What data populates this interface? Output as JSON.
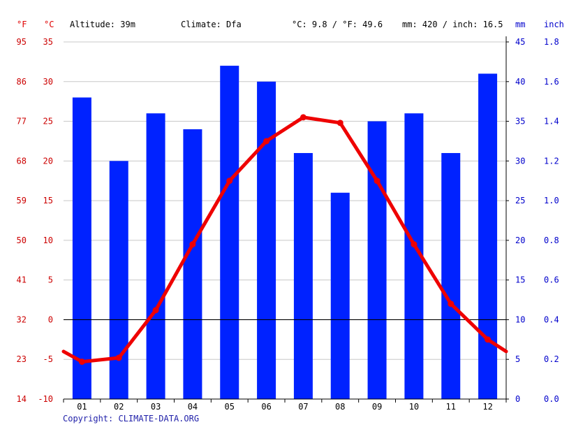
{
  "header": {
    "unit_f": "°F",
    "unit_c": "°C",
    "altitude": "Altitude: 39m",
    "climate": "Climate: Dfa",
    "temp_avg": "°C: 9.8 / °F: 49.6",
    "precip_total": "mm: 420 / inch: 16.5",
    "unit_mm": "mm",
    "unit_inch": "inch"
  },
  "footer": {
    "copyright": "Copyright: CLIMATE-DATA.ORG"
  },
  "colors": {
    "temperature": "#ee0000",
    "precipitation": "#0022ff",
    "left_axis": "#cc0000",
    "right_axis": "#0000cc"
  },
  "chart_data": {
    "type": "bar",
    "categories": [
      "01",
      "02",
      "03",
      "04",
      "05",
      "06",
      "07",
      "08",
      "09",
      "10",
      "11",
      "12"
    ],
    "series": [
      {
        "values": [
          38,
          30,
          36,
          34,
          42,
          40,
          31,
          26,
          35,
          36,
          31,
          41
        ]
      },
      {
        "type": "line",
        "values": [
          -5.3,
          -4.8,
          1.2,
          9.5,
          17.5,
          22.5,
          25.5,
          24.8,
          17.5,
          9.5,
          2.0,
          -2.5
        ]
      }
    ],
    "x_endpoints_temp": {
      "before": -4.0,
      "after": -4.0
    },
    "y_left_c": {
      "ticks": [
        35,
        30,
        25,
        20,
        15,
        10,
        5,
        0,
        -5,
        -10
      ],
      "lim": [
        -10,
        35
      ]
    },
    "y_left_f": {
      "ticks": [
        95,
        86,
        77,
        68,
        59,
        50,
        41,
        32,
        23,
        14
      ]
    },
    "y_right_mm": {
      "ticks": [
        45,
        40,
        35,
        30,
        25,
        20,
        15,
        10,
        5,
        0
      ],
      "lim": [
        0,
        45
      ]
    },
    "y_right_inch": {
      "ticks": [
        "1.8",
        "1.6",
        "1.4",
        "1.2",
        "1.0",
        "0.8",
        "0.6",
        "0.4",
        "0.2",
        "0.0"
      ]
    },
    "grid": true,
    "zero_line": true
  }
}
